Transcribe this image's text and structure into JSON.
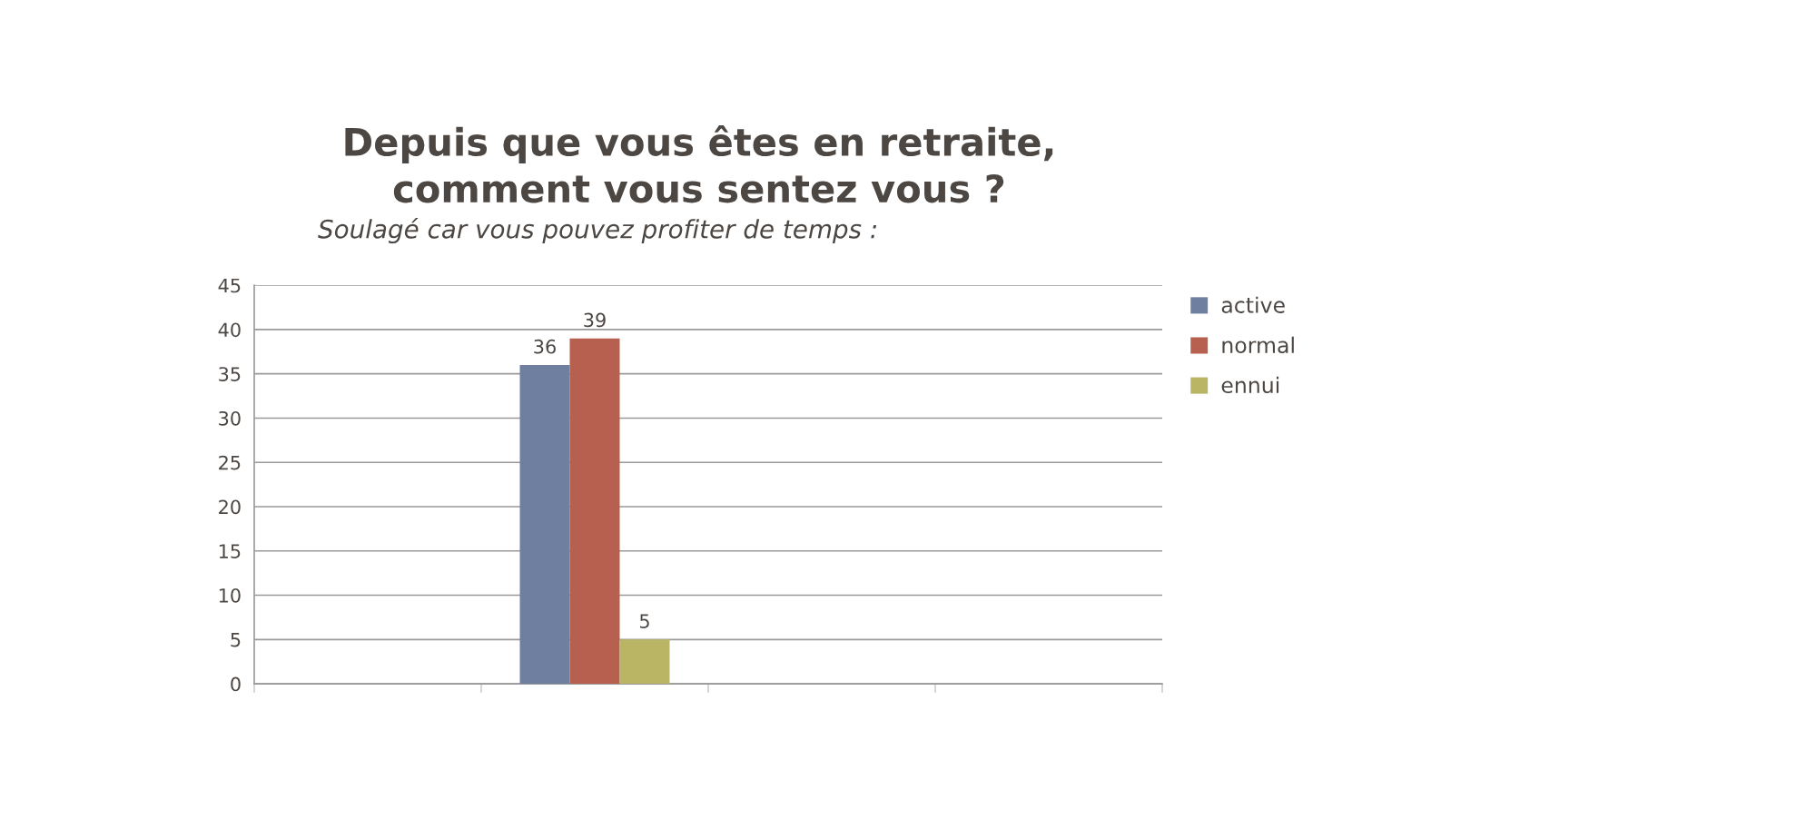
{
  "chart_data": {
    "type": "bar",
    "title": "Depuis que vous êtes en retraite,\ncomment vous sentez vous ?",
    "subtitle": "Soulagé car vous pouvez profiter de temps :",
    "categories": [
      null,
      null,
      null,
      null
    ],
    "series": [
      {
        "name": "active",
        "color": "#6f7fa0",
        "values": [
          null,
          36,
          null,
          null
        ]
      },
      {
        "name": "normal",
        "color": "#b8604f",
        "values": [
          null,
          39,
          null,
          null
        ]
      },
      {
        "name": "ennui",
        "color": "#b9b565",
        "values": [
          null,
          5,
          null,
          null
        ]
      }
    ],
    "ylim": [
      0,
      45
    ],
    "yticks": [
      0,
      5,
      10,
      15,
      20,
      25,
      30,
      35,
      40,
      45
    ],
    "grid": "y",
    "legend": "top right",
    "data_labels": true,
    "tick_labels": "y"
  }
}
